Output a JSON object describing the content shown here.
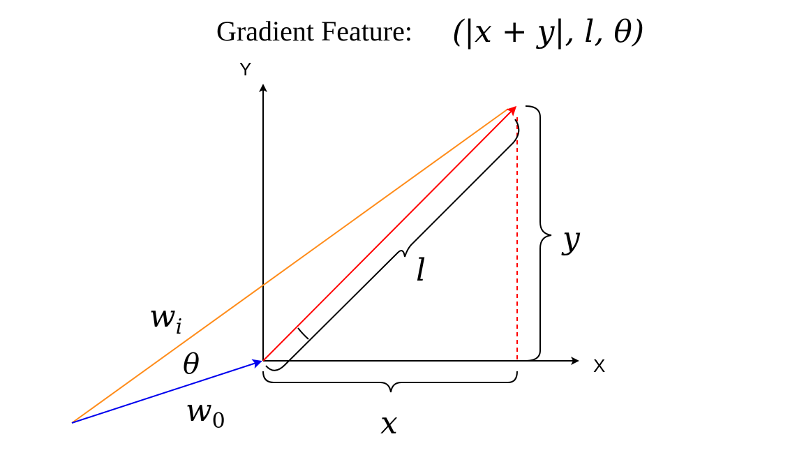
{
  "title": {
    "prefix": "Gradient Feature:",
    "formula": "(|x + y|, l, θ)"
  },
  "axes": {
    "x_label": "X",
    "y_label": "Y"
  },
  "labels": {
    "w_i": {
      "base": "w",
      "sub": "i"
    },
    "w_0": {
      "base": "w",
      "sub": "0"
    },
    "theta": "θ",
    "l": "l",
    "x": "x",
    "y": "y"
  },
  "colors": {
    "w_i_vector": "#ff8c1a",
    "w_0_vector": "#0000ee",
    "gradient_vector": "#ff0000",
    "projection_line": "#ff0000",
    "axes": "#000000"
  }
}
